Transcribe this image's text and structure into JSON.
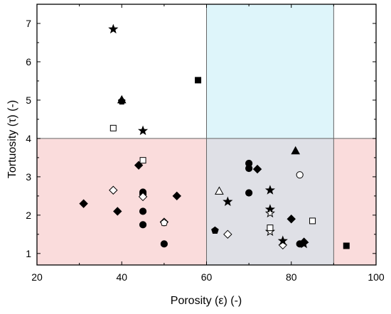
{
  "chart_data": {
    "type": "scatter",
    "xlabel": "Porosity (ε) (-)",
    "ylabel": "Tortuosity (τ) (-)",
    "xlim": [
      20,
      100
    ],
    "ylim": [
      0.7,
      7.5
    ],
    "xticks": [
      20,
      40,
      60,
      80,
      100
    ],
    "yticks": [
      1,
      2,
      3,
      4,
      5,
      6,
      7
    ],
    "grid": false,
    "regions": [
      {
        "name": "red-region",
        "x": [
          20,
          100
        ],
        "y": [
          0.7,
          4.0
        ],
        "color": "#fadcdc"
      },
      {
        "name": "blue-region",
        "x": [
          60,
          90
        ],
        "y": [
          4.0,
          7.5
        ],
        "color": "#def5fa"
      },
      {
        "name": "grey-region",
        "x": [
          60,
          90
        ],
        "y": [
          0.7,
          4.0
        ],
        "color": "#dfe0e6"
      }
    ],
    "series": [
      {
        "marker": "filled-circle",
        "points": [
          [
            45,
            2.6
          ],
          [
            45,
            2.55
          ],
          [
            45,
            2.1
          ],
          [
            45,
            1.75
          ],
          [
            50,
            1.25
          ],
          [
            70,
            3.35
          ],
          [
            70,
            3.22
          ],
          [
            70,
            2.58
          ],
          [
            82,
            1.25
          ]
        ]
      },
      {
        "marker": "open-circle",
        "points": [
          [
            82,
            3.05
          ]
        ]
      },
      {
        "marker": "filled-diamond",
        "points": [
          [
            31,
            2.3
          ],
          [
            39,
            2.1
          ],
          [
            44,
            3.3
          ],
          [
            53,
            2.5
          ],
          [
            72,
            3.2
          ],
          [
            80,
            1.9
          ],
          [
            83,
            1.3
          ]
        ]
      },
      {
        "marker": "open-diamond",
        "points": [
          [
            38,
            2.65
          ],
          [
            45,
            2.48
          ],
          [
            50,
            1.82
          ],
          [
            65,
            1.5
          ],
          [
            78,
            1.22
          ]
        ]
      },
      {
        "marker": "filled-star",
        "points": [
          [
            38,
            6.85
          ],
          [
            45,
            4.2
          ],
          [
            65,
            2.35
          ],
          [
            75,
            2.65
          ],
          [
            75,
            2.15
          ],
          [
            78,
            1.33
          ],
          [
            83,
            1.25
          ]
        ]
      },
      {
        "marker": "open-star",
        "points": [
          [
            75,
            2.05
          ],
          [
            75,
            1.57
          ]
        ]
      },
      {
        "marker": "filled-square",
        "points": [
          [
            58,
            5.52
          ],
          [
            93,
            1.2
          ]
        ]
      },
      {
        "marker": "open-square",
        "points": [
          [
            38,
            4.27
          ],
          [
            45,
            3.43
          ],
          [
            75,
            1.67
          ],
          [
            85,
            1.85
          ]
        ]
      },
      {
        "marker": "filled-triangle",
        "points": [
          [
            40,
            5.0
          ],
          [
            81,
            3.67
          ]
        ]
      },
      {
        "marker": "open-triangle",
        "points": [
          [
            63,
            2.62
          ]
        ]
      },
      {
        "marker": "filled-pentagon",
        "points": [
          [
            62,
            1.6
          ],
          [
            40,
            4.97
          ]
        ]
      },
      {
        "marker": "open-pentagon",
        "points": [
          [
            50,
            1.8
          ]
        ]
      }
    ],
    "colors": {
      "axis": "#000000",
      "marker": "#000000",
      "boundary": "#666666"
    }
  }
}
